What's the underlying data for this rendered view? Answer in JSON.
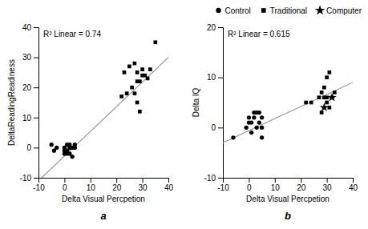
{
  "chart_data": [
    {
      "type": "scatter",
      "title": "a",
      "annotation": "R² Linear = 0.74",
      "xlabel": "Delta Visual Percpetion",
      "ylabel": "DeltaReadingReadiness",
      "xlim": [
        -10,
        40
      ],
      "ylim": [
        -10,
        40
      ],
      "xticks": [
        -10,
        0,
        10,
        20,
        30,
        40
      ],
      "yticks": [
        -10,
        0,
        10,
        20,
        30,
        40
      ],
      "grid": false,
      "series": [
        {
          "name": "Control",
          "marker": "circle",
          "color": "black",
          "x": [
            -5,
            -4,
            -3,
            0,
            0,
            0,
            1,
            1,
            1,
            2,
            2,
            2,
            3,
            3,
            4,
            4
          ],
          "values": [
            1,
            -1,
            0,
            -1,
            -2,
            0,
            1,
            -2,
            -1,
            -2,
            0,
            1,
            -3,
            0,
            0,
            1
          ]
        },
        {
          "name": "Traditional",
          "marker": "square",
          "color": "black",
          "x": [
            22,
            23,
            24,
            25,
            26,
            27,
            27,
            28,
            28,
            28,
            29,
            29,
            30,
            30,
            31,
            32,
            33,
            35
          ],
          "values": [
            17,
            25,
            18,
            27,
            20,
            18,
            28,
            15,
            22,
            25,
            12,
            22,
            24,
            26,
            24,
            23,
            26,
            35
          ]
        }
      ],
      "fit": {
        "x": [
          -10,
          40
        ],
        "values": [
          -11,
          30
        ],
        "color": "#999999"
      }
    },
    {
      "type": "scatter",
      "title": "b",
      "annotation": "R² Linear = 0.615",
      "xlabel": "Delta Visual Percpetion",
      "ylabel": "Delta IQ",
      "xlim": [
        -10,
        40
      ],
      "ylim": [
        -10,
        20
      ],
      "xticks": [
        -10,
        0,
        10,
        20,
        30,
        40
      ],
      "yticks": [
        -10,
        0,
        10,
        20
      ],
      "grid": false,
      "legend": "upper right",
      "series": [
        {
          "name": "Control",
          "marker": "circle",
          "color": "black",
          "x": [
            -6,
            -1,
            0,
            0,
            1,
            1,
            2,
            2,
            3,
            3,
            4,
            4,
            5,
            5,
            5
          ],
          "values": [
            -2,
            0,
            1,
            2,
            -1,
            1,
            2,
            3,
            0,
            3,
            1,
            3,
            -2,
            0,
            2
          ]
        },
        {
          "name": "Traditional",
          "marker": "square",
          "color": "black",
          "x": [
            22,
            24,
            27,
            28,
            28,
            29,
            29,
            30,
            30,
            30,
            31,
            31,
            32,
            33
          ],
          "values": [
            5,
            5,
            6,
            3,
            7,
            6,
            8,
            5,
            6,
            10,
            4,
            11,
            6,
            7
          ]
        },
        {
          "name": "Computer",
          "marker": "star",
          "color": "black",
          "x": [
            29,
            32
          ],
          "values": [
            4,
            6
          ]
        }
      ],
      "fit": {
        "x": [
          -10,
          40
        ],
        "values": [
          -3,
          9
        ],
        "color": "#999999"
      }
    }
  ]
}
